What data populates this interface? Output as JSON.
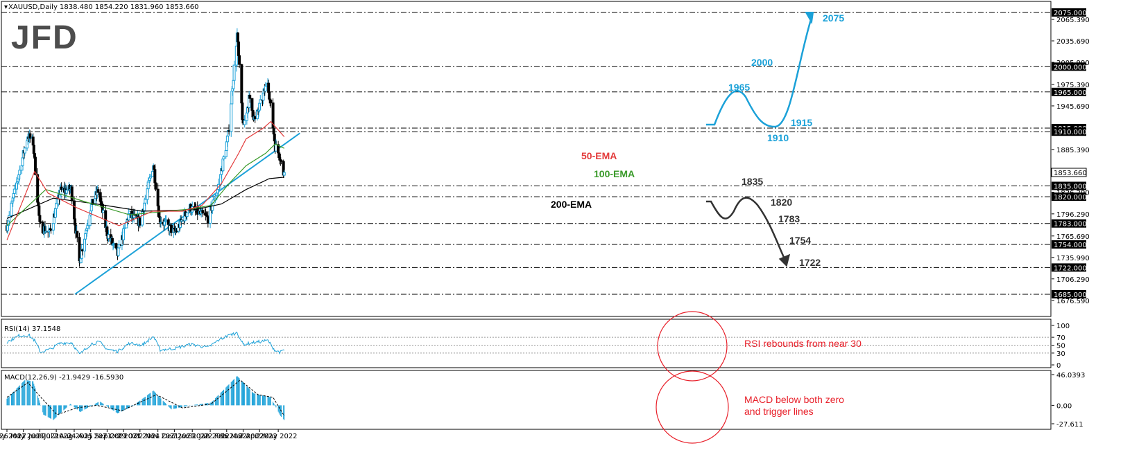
{
  "logo": "JFD",
  "colors": {
    "blue": "#1ba1d8",
    "red": "#e33b3b",
    "green": "#3a9a2a",
    "black": "#000000",
    "annot_blue": "#1ba1d8",
    "annot_dark": "#333333",
    "circle_red": "#e8202a",
    "trend_blue": "#1ba1d8"
  },
  "chart_data": [
    {
      "type": "candlestick",
      "symbol_header": "XAUUSD,Daily  1838.480 1854.220 1831.960 1853.660",
      "ylim": [
        1670,
        2083
      ],
      "y_ticks": [
        "2065.390",
        "2035.690",
        "2005.990",
        "1975.390",
        "1945.690",
        "1885.390",
        "1826.290",
        "1796.290",
        "1765.690",
        "1735.990",
        "1706.290",
        "1676.590"
      ],
      "x_ticks": [
        "4 May 2021",
        "26 May 2021",
        "17 Jun 2021",
        "9 Jul 2021",
        "2 Aug 2021",
        "24 Aug 2021",
        "15 Sep 2021",
        "7 Oct 2021",
        "29 Oct 2021",
        "22 Nov 2021",
        "14 Dec 2021",
        "7 Jan 2022",
        "31 Jan 2022",
        "22 Feb 2022",
        "16 Mar 2022",
        "7 Apr 2022",
        "2 May 2022"
      ],
      "levels": [
        {
          "value": 2075,
          "label": "2075.000"
        },
        {
          "value": 2000,
          "label": "2000.000"
        },
        {
          "value": 1965,
          "label": "1965.000"
        },
        {
          "value": 1915,
          "label": "1915.000"
        },
        {
          "value": 1910,
          "label": "1910.000"
        },
        {
          "value": 1835,
          "label": "1835.000"
        },
        {
          "value": 1820,
          "label": "1820.000"
        },
        {
          "value": 1783,
          "label": "1783.000"
        },
        {
          "value": 1754,
          "label": "1754.000"
        },
        {
          "value": 1722,
          "label": "1722.000"
        },
        {
          "value": 1685,
          "label": "1685.000"
        }
      ],
      "last_price": {
        "value": 1853.66,
        "label": "1853.660"
      },
      "ema_labels": [
        {
          "text": "50-EMA",
          "color": "#e33b3b"
        },
        {
          "text": "100-EMA",
          "color": "#3a9a2a"
        },
        {
          "text": "200-EMA",
          "color": "#000000"
        }
      ],
      "scenario_labels_bull": [
        "2075",
        "2000",
        "1965",
        "1915",
        "1910"
      ],
      "scenario_labels_bear": [
        "1835",
        "1820",
        "1783",
        "1754",
        "1722"
      ],
      "trendline": {
        "start": {
          "date": "3 Aug 2021",
          "value": 1685
        },
        "end": {
          "date": "31 May 2022",
          "value": 1908
        }
      },
      "anchors": [
        {
          "date": "4 May 2021",
          "price": 1780
        },
        {
          "date": "1 Jun 2021",
          "price": 1905
        },
        {
          "date": "8 Jun 2021",
          "price": 1895
        },
        {
          "date": "17 Jun 2021",
          "price": 1780
        },
        {
          "date": "30 Jun 2021",
          "price": 1770
        },
        {
          "date": "15 Jul 2021",
          "price": 1828
        },
        {
          "date": "29 Jul 2021",
          "price": 1830
        },
        {
          "date": "9 Aug 2021",
          "price": 1730
        },
        {
          "date": "24 Aug 2021",
          "price": 1805
        },
        {
          "date": "3 Sep 2021",
          "price": 1828
        },
        {
          "date": "15 Sep 2021",
          "price": 1770
        },
        {
          "date": "29 Sep 2021",
          "price": 1740
        },
        {
          "date": "14 Oct 2021",
          "price": 1795
        },
        {
          "date": "29 Oct 2021",
          "price": 1785
        },
        {
          "date": "16 Nov 2021",
          "price": 1865
        },
        {
          "date": "24 Nov 2021",
          "price": 1790
        },
        {
          "date": "15 Dec 2021",
          "price": 1770
        },
        {
          "date": "3 Jan 2022",
          "price": 1805
        },
        {
          "date": "28 Jan 2022",
          "price": 1790
        },
        {
          "date": "10 Feb 2022",
          "price": 1830
        },
        {
          "date": "24 Feb 2022",
          "price": 1905
        },
        {
          "date": "8 Mar 2022",
          "price": 2045
        },
        {
          "date": "16 Mar 2022",
          "price": 1915
        },
        {
          "date": "24 Mar 2022",
          "price": 1955
        },
        {
          "date": "1 Apr 2022",
          "price": 1925
        },
        {
          "date": "18 Apr 2022",
          "price": 1980
        },
        {
          "date": "28 Apr 2022",
          "price": 1890
        },
        {
          "date": "5 May 2022",
          "price": 1875
        },
        {
          "date": "10 May 2022",
          "price": 1840
        }
      ],
      "ema50": [
        {
          "date": "4 May 2021",
          "value": 1760
        },
        {
          "date": "10 Jun 2021",
          "value": 1855
        },
        {
          "date": "28 Jun 2021",
          "value": 1825
        },
        {
          "date": "5 Aug 2021",
          "value": 1805
        },
        {
          "date": "1 Oct 2021",
          "value": 1780
        },
        {
          "date": "15 Nov 2021",
          "value": 1800
        },
        {
          "date": "25 Dec 2021",
          "value": 1800
        },
        {
          "date": "20 Jan 2022",
          "value": 1808
        },
        {
          "date": "15 Feb 2022",
          "value": 1838
        },
        {
          "date": "10 Mar 2022",
          "value": 1880
        },
        {
          "date": "20 Mar 2022",
          "value": 1900
        },
        {
          "date": "12 Apr 2022",
          "value": 1915
        },
        {
          "date": "22 Apr 2022",
          "value": 1924
        },
        {
          "date": "10 May 2022",
          "value": 1903
        }
      ],
      "ema100": [
        {
          "date": "4 May 2021",
          "value": 1780
        },
        {
          "date": "25 Jun 2021",
          "value": 1830
        },
        {
          "date": "20 Aug 2021",
          "value": 1812
        },
        {
          "date": "15 Oct 2021",
          "value": 1795
        },
        {
          "date": "5 Jan 2022",
          "value": 1803
        },
        {
          "date": "1 Feb 2022",
          "value": 1808
        },
        {
          "date": "25 Feb 2022",
          "value": 1838
        },
        {
          "date": "20 Mar 2022",
          "value": 1863
        },
        {
          "date": "15 Apr 2022",
          "value": 1880
        },
        {
          "date": "28 Apr 2022",
          "value": 1893
        },
        {
          "date": "10 May 2022",
          "value": 1887
        }
      ],
      "ema200": [
        {
          "date": "4 May 2021",
          "value": 1790
        },
        {
          "date": "5 Jul 2021",
          "value": 1818
        },
        {
          "date": "1 Sep 2021",
          "value": 1810
        },
        {
          "date": "1 Nov 2021",
          "value": 1800
        },
        {
          "date": "10 Jan 2022",
          "value": 1802
        },
        {
          "date": "15 Feb 2022",
          "value": 1810
        },
        {
          "date": "20 Mar 2022",
          "value": 1830
        },
        {
          "date": "20 Apr 2022",
          "value": 1845
        },
        {
          "date": "10 May 2022",
          "value": 1847
        }
      ]
    },
    {
      "type": "line",
      "header": "RSI(14) 37.1548",
      "ylim": [
        0,
        100
      ],
      "y_ticks": [
        "100",
        "70",
        "50",
        "30",
        "0"
      ],
      "levels": [
        70,
        50,
        30
      ],
      "series": [
        {
          "date": "4 May 2021",
          "value": 58
        },
        {
          "date": "20 May 2021",
          "value": 74
        },
        {
          "date": "2 Jun 2021",
          "value": 76
        },
        {
          "date": "10 Jun 2021",
          "value": 62
        },
        {
          "date": "18 Jun 2021",
          "value": 32
        },
        {
          "date": "1 Jul 2021",
          "value": 40
        },
        {
          "date": "15 Jul 2021",
          "value": 56
        },
        {
          "date": "30 Jul 2021",
          "value": 56
        },
        {
          "date": "9 Aug 2021",
          "value": 26
        },
        {
          "date": "25 Aug 2021",
          "value": 54
        },
        {
          "date": "5 Sep 2021",
          "value": 58
        },
        {
          "date": "15 Sep 2021",
          "value": 40
        },
        {
          "date": "29 Sep 2021",
          "value": 34
        },
        {
          "date": "15 Oct 2021",
          "value": 55
        },
        {
          "date": "1 Nov 2021",
          "value": 50
        },
        {
          "date": "16 Nov 2021",
          "value": 72
        },
        {
          "date": "25 Nov 2021",
          "value": 38
        },
        {
          "date": "15 Dec 2021",
          "value": 42
        },
        {
          "date": "5 Jan 2022",
          "value": 52
        },
        {
          "date": "28 Jan 2022",
          "value": 44
        },
        {
          "date": "12 Feb 2022",
          "value": 64
        },
        {
          "date": "24 Feb 2022",
          "value": 74
        },
        {
          "date": "8 Mar 2022",
          "value": 82
        },
        {
          "date": "16 Mar 2022",
          "value": 52
        },
        {
          "date": "28 Mar 2022",
          "value": 56
        },
        {
          "date": "18 Apr 2022",
          "value": 62
        },
        {
          "date": "28 Apr 2022",
          "value": 36
        },
        {
          "date": "5 May 2022",
          "value": 32
        },
        {
          "date": "10 May 2022",
          "value": 37
        }
      ],
      "annotation": "RSI rebounds from near 30"
    },
    {
      "type": "bar",
      "header": "MACD(12,26,9) -21.9429 -16.5930",
      "ylim": [
        -30,
        50
      ],
      "y_ticks": [
        "46.0393",
        "0.00",
        "-27.611"
      ],
      "macd": [
        {
          "date": "4 May 2021",
          "value": 10
        },
        {
          "date": "28 May 2021",
          "value": 38
        },
        {
          "date": "8 Jun 2021",
          "value": 36
        },
        {
          "date": "22 Jun 2021",
          "value": -14
        },
        {
          "date": "5 Jul 2021",
          "value": -22
        },
        {
          "date": "28 Jul 2021",
          "value": 2
        },
        {
          "date": "10 Aug 2021",
          "value": -10
        },
        {
          "date": "5 Sep 2021",
          "value": 6
        },
        {
          "date": "29 Sep 2021",
          "value": -12
        },
        {
          "date": "18 Oct 2021",
          "value": -2
        },
        {
          "date": "16 Nov 2021",
          "value": 22
        },
        {
          "date": "10 Dec 2021",
          "value": -6
        },
        {
          "date": "5 Jan 2022",
          "value": 0
        },
        {
          "date": "1 Feb 2022",
          "value": 4
        },
        {
          "date": "8 Mar 2022",
          "value": 44
        },
        {
          "date": "30 Mar 2022",
          "value": 18
        },
        {
          "date": "22 Apr 2022",
          "value": 12
        },
        {
          "date": "5 May 2022",
          "value": -16
        },
        {
          "date": "10 May 2022",
          "value": -22
        }
      ],
      "signal": [
        {
          "date": "4 May 2021",
          "value": 12
        },
        {
          "date": "1 Jun 2021",
          "value": 34
        },
        {
          "date": "20 Jun 2021",
          "value": 10
        },
        {
          "date": "10 Jul 2021",
          "value": -14
        },
        {
          "date": "5 Aug 2021",
          "value": -4
        },
        {
          "date": "1 Sep 2021",
          "value": 0
        },
        {
          "date": "5 Oct 2021",
          "value": -8
        },
        {
          "date": "20 Nov 2021",
          "value": 16
        },
        {
          "date": "25 Dec 2021",
          "value": -4
        },
        {
          "date": "1 Feb 2022",
          "value": 2
        },
        {
          "date": "12 Mar 2022",
          "value": 38
        },
        {
          "date": "5 Apr 2022",
          "value": 16
        },
        {
          "date": "25 Apr 2022",
          "value": 12
        },
        {
          "date": "10 May 2022",
          "value": -16
        }
      ],
      "annotation": "MACD below both zero\nand trigger lines"
    }
  ]
}
